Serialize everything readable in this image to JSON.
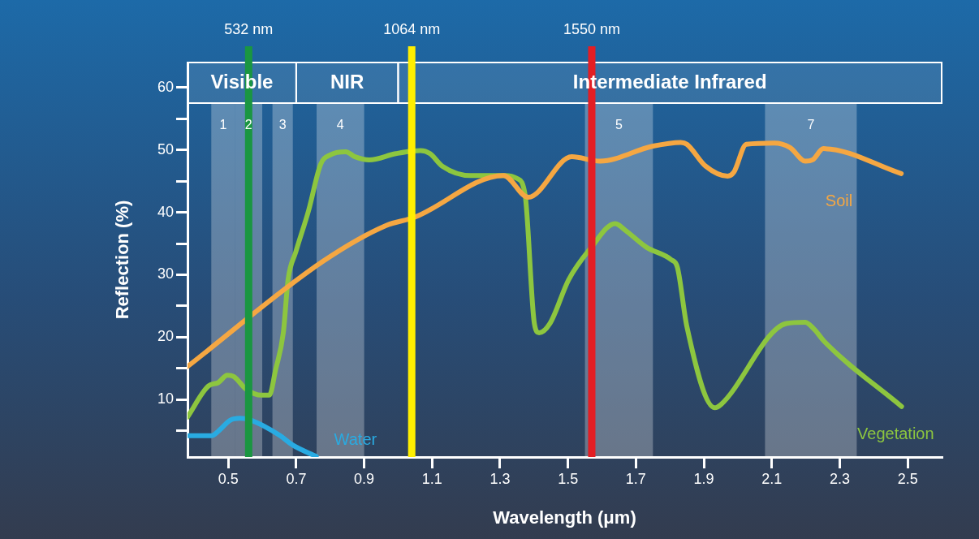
{
  "chart_data": {
    "type": "line",
    "xlabel": "Wavelength (μm)",
    "ylabel": "Reflection (%)",
    "xlim": [
      0.38,
      2.6
    ],
    "xticks": [
      0.5,
      0.7,
      0.9,
      1.1,
      1.3,
      1.5,
      1.7,
      1.9,
      2.1,
      2.3,
      2.5
    ],
    "ylim": [
      0.8,
      64
    ],
    "yticks": [
      {
        "value": 5,
        "label": null
      },
      10,
      {
        "value": 15,
        "label": null
      },
      20,
      {
        "value": 25,
        "label": null
      },
      30,
      {
        "value": 35,
        "label": null
      },
      40,
      {
        "value": 45,
        "label": null
      },
      50,
      {
        "value": 55,
        "label": null
      },
      60
    ],
    "grid": false,
    "legend": false,
    "marker": "none",
    "line_style": "solid",
    "series": [
      {
        "name": "Soil",
        "color": "#f5a742",
        "x": [
          0.38,
          0.78,
          0.965,
          1.048,
          1.31,
          1.383,
          1.511,
          1.594,
          1.75,
          1.832,
          1.85,
          1.905,
          1.97,
          1.988,
          2.025,
          2.107,
          2.153,
          2.199,
          2.22,
          2.252,
          2.481
        ],
        "values": [
          15.3,
          32.2,
          37.9,
          39.2,
          45.9,
          42.4,
          48.9,
          48.2,
          50.6,
          51.2,
          50.9,
          47.4,
          45.8,
          46.4,
          50.9,
          51.1,
          50.4,
          48.2,
          48.4,
          50.2,
          46.2
        ]
      },
      {
        "name": "Vegetation",
        "color": "#8dc63f",
        "x": [
          0.38,
          0.442,
          0.47,
          0.497,
          0.516,
          0.552,
          0.598,
          0.621,
          0.639,
          0.662,
          0.676,
          0.699,
          0.736,
          0.772,
          0.8,
          0.846,
          0.873,
          0.915,
          0.993,
          1.066,
          1.094,
          1.13,
          1.213,
          1.314,
          1.351,
          1.374,
          1.401,
          1.415,
          1.447,
          1.502,
          1.566,
          1.639,
          1.667,
          1.731,
          1.804,
          1.822,
          1.85,
          1.932,
          1.95,
          2.143,
          2.198,
          2.226,
          2.253,
          2.482
        ],
        "values": [
          7.2,
          12.2,
          12.7,
          13.9,
          13.7,
          11.7,
          10.7,
          10.7,
          14.7,
          20.7,
          29.2,
          33.7,
          40.2,
          47.7,
          49.2,
          49.7,
          48.9,
          48.4,
          49.4,
          49.9,
          49.4,
          47.4,
          45.9,
          45.9,
          45.4,
          42.7,
          22.2,
          20.7,
          22.2,
          29.2,
          34.2,
          38.2,
          37.2,
          34.4,
          32.4,
          31.2,
          21.7,
          8.7,
          9.2,
          22.2,
          22.4,
          21.2,
          19.4,
          8.9
        ]
      },
      {
        "name": "Water",
        "color": "#29abe2",
        "x": [
          0.38,
          0.451,
          0.47,
          0.506,
          0.534,
          0.561,
          0.607,
          0.653,
          0.69,
          0.759
        ],
        "values": [
          4.2,
          4.2,
          4.9,
          6.7,
          7.0,
          6.8,
          5.7,
          4.2,
          2.7,
          0.9
        ]
      }
    ],
    "bands": [
      {
        "axis": "x",
        "from": 0.38,
        "to": 0.7,
        "label": "Visible"
      },
      {
        "axis": "x",
        "from": 0.7,
        "to": 1.0,
        "label": "NIR"
      },
      {
        "axis": "x",
        "from": 1.0,
        "to": 2.6,
        "label": "Intermediate Infrared"
      },
      {
        "axis": "x",
        "from": 0.45,
        "to": 0.52,
        "label": "1",
        "color": "#ffffff"
      },
      {
        "axis": "x",
        "from": 0.52,
        "to": 0.6,
        "label": "2",
        "color": "#ffffff"
      },
      {
        "axis": "x",
        "from": 0.63,
        "to": 0.69,
        "label": "3",
        "color": "#ffffff"
      },
      {
        "axis": "x",
        "from": 0.76,
        "to": 0.9,
        "label": "4",
        "color": "#ffffff"
      },
      {
        "axis": "x",
        "from": 1.55,
        "to": 1.75,
        "label": "5",
        "color": "#ffffff"
      },
      {
        "axis": "x",
        "from": 2.08,
        "to": 2.35,
        "label": "7",
        "color": "#ffffff"
      }
    ],
    "ref_lines": [
      {
        "axis": "x",
        "value": 0.56,
        "label": "532 nm",
        "color": "#1a9641"
      },
      {
        "axis": "x",
        "value": 1.04,
        "label": "1064 nm",
        "color": "#ffef00"
      },
      {
        "axis": "x",
        "value": 1.57,
        "label": "1550 nm",
        "color": "#e31e24"
      }
    ]
  }
}
